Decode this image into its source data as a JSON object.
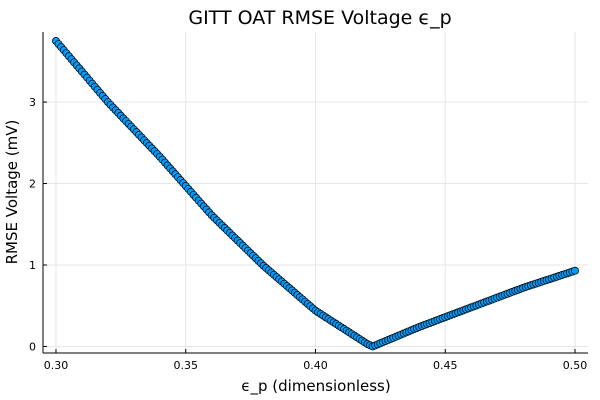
{
  "chart_data": {
    "type": "scatter",
    "title": "GITT OAT RMSE Voltage ϵ_p",
    "xlabel": "ϵ_p (dimensionless)",
    "ylabel": "RMSE Voltage (mV)",
    "xlim": [
      0.295,
      0.505
    ],
    "ylim": [
      -0.08,
      3.86
    ],
    "xticks": [
      0.3,
      0.35,
      0.4,
      0.45,
      0.5
    ],
    "xtick_labels": [
      "0.30",
      "0.35",
      "0.40",
      "0.45",
      "0.50"
    ],
    "yticks": [
      0,
      1,
      2,
      3
    ],
    "ytick_labels": [
      "0",
      "1",
      "2",
      "3"
    ],
    "grid": true,
    "legend": "none",
    "marker_color": "#009af9",
    "marker_edge_color": "#000000",
    "series": [
      {
        "x_start": 0.3,
        "x_end": 0.5,
        "n_points": 201,
        "minimum_x": 0.422,
        "x": [
          0.3,
          0.32,
          0.34,
          0.36,
          0.38,
          0.4,
          0.42,
          0.422,
          0.44,
          0.46,
          0.48,
          0.5
        ],
        "values": [
          3.75,
          3.0,
          2.33,
          1.61,
          0.99,
          0.44,
          0.03,
          0.0,
          0.24,
          0.48,
          0.72,
          0.93
        ]
      }
    ]
  }
}
